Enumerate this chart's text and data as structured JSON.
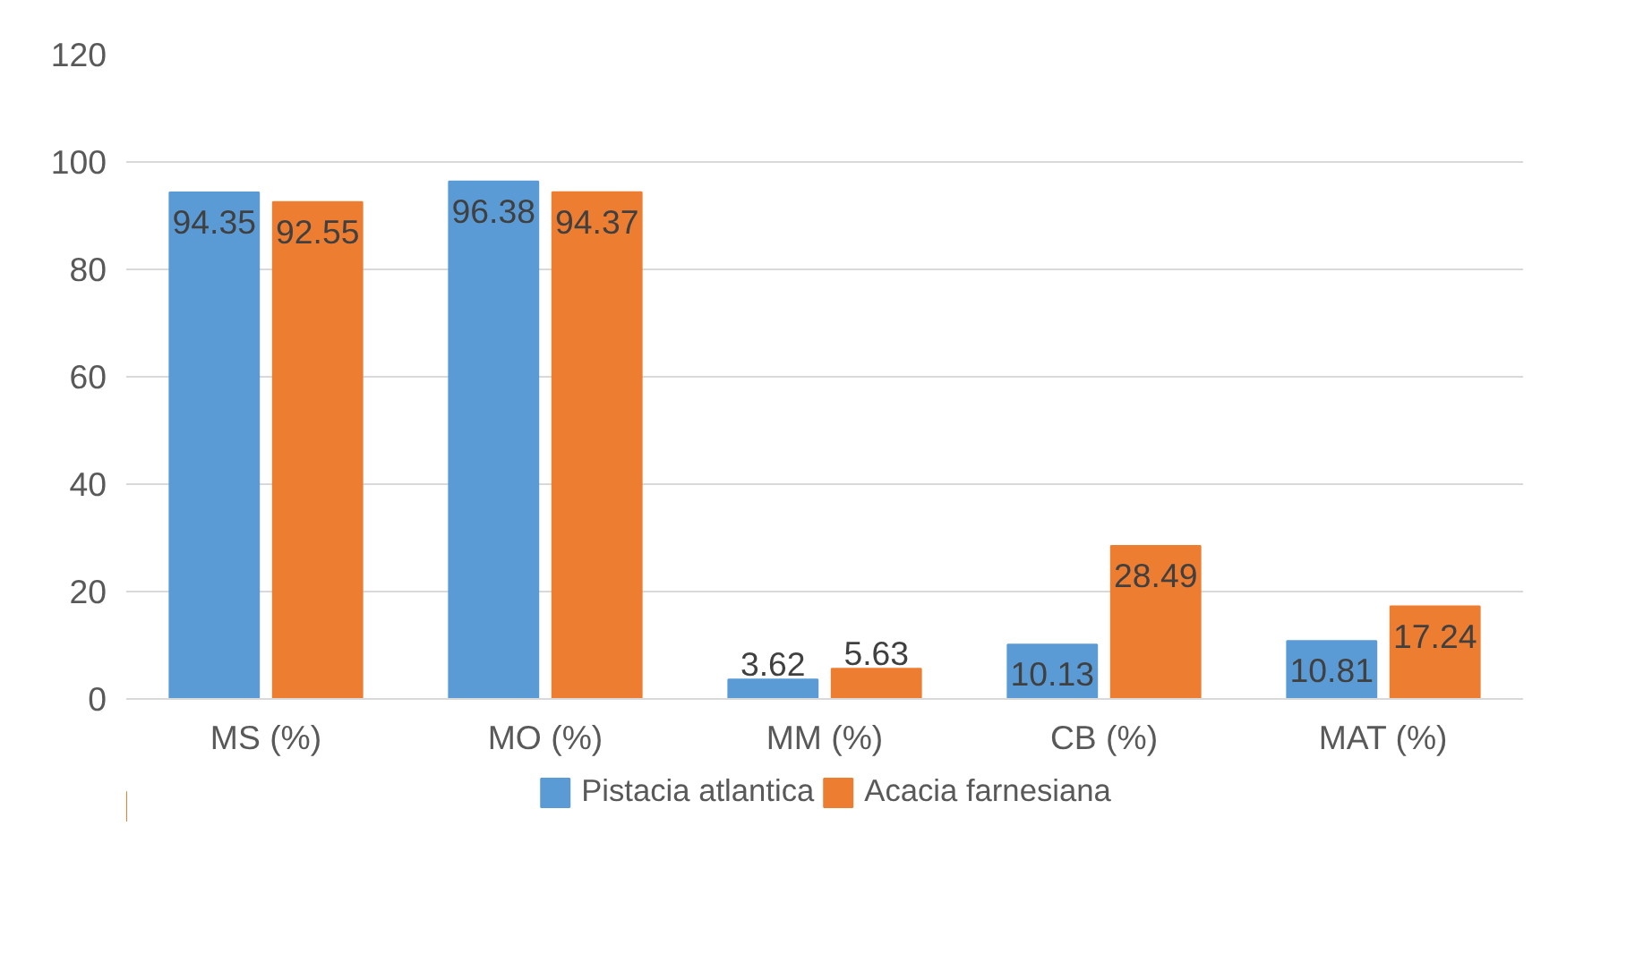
{
  "chart_data": {
    "type": "bar",
    "categories": [
      "MS (%)",
      "MO (%)",
      "MM (%)",
      "CB (%)",
      "MAT (%)"
    ],
    "series": [
      {
        "name": "Pistacia atlantica",
        "color": "#5b9bd5",
        "values": [
          94.35,
          96.38,
          3.62,
          10.13,
          10.81
        ]
      },
      {
        "name": "Acacia farnesiana",
        "color": "#ed7d31",
        "values": [
          92.55,
          94.37,
          5.63,
          28.49,
          17.24
        ]
      }
    ],
    "ylim": [
      0,
      120
    ],
    "yticks": [
      0,
      20,
      40,
      60,
      80,
      100,
      120
    ],
    "grid": "y",
    "legend": "bottom",
    "data_labels": true
  }
}
